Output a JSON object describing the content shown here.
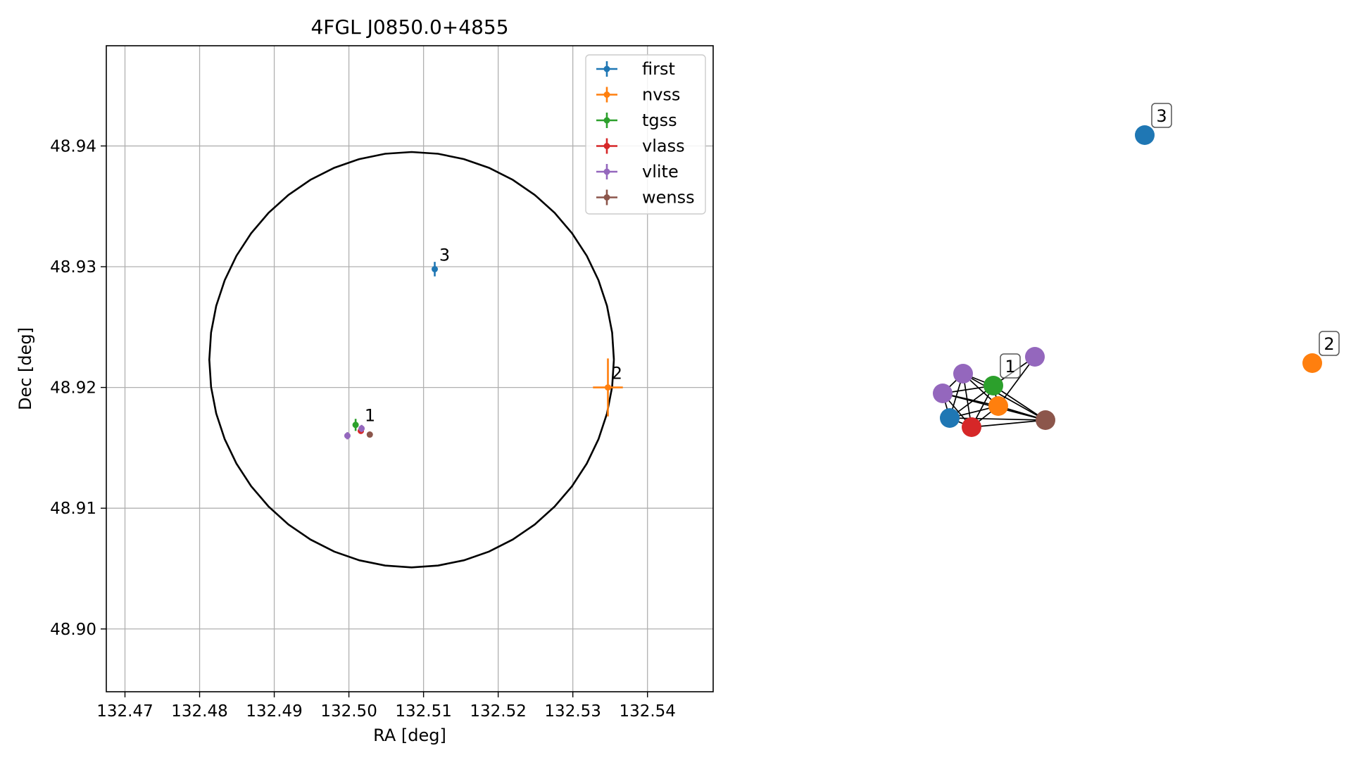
{
  "chart_data": [
    {
      "type": "scatter",
      "title": "4FGL J0850.0+4855",
      "xlabel": "RA [deg]",
      "ylabel": "Dec [deg]",
      "xlim": [
        132.4675,
        132.5488
      ],
      "ylim": [
        48.8948,
        48.9483
      ],
      "xticks": [
        132.47,
        132.48,
        132.49,
        132.5,
        132.51,
        132.52,
        132.53,
        132.54
      ],
      "xtick_labels": [
        "132.47",
        "132.48",
        "132.49",
        "132.50",
        "132.51",
        "132.52",
        "132.53",
        "132.54"
      ],
      "yticks": [
        48.9,
        48.91,
        48.92,
        48.93,
        48.94
      ],
      "ytick_labels": [
        "48.90",
        "48.91",
        "48.92",
        "48.93",
        "48.94"
      ],
      "grid": true,
      "legend_position": "top-right",
      "ellipse": {
        "center": [
          132.5084,
          48.9223
        ],
        "ra_semi_axis": 0.0271,
        "dec_semi_axis": 0.0172
      },
      "series": [
        {
          "name": "first",
          "color": "#1f77b4",
          "points": [
            {
              "x": 132.5115,
              "y": 48.9298,
              "xerr": 0.0003,
              "yerr": 0.0006
            }
          ]
        },
        {
          "name": "nvss",
          "color": "#ff7f0e",
          "points": [
            {
              "x": 132.5347,
              "y": 48.92,
              "xerr": 0.002,
              "yerr": 0.0024
            }
          ]
        },
        {
          "name": "tgss",
          "color": "#2ca02c",
          "points": [
            {
              "x": 132.5009,
              "y": 48.9169,
              "xerr": 0.0004,
              "yerr": 0.0005
            }
          ]
        },
        {
          "name": "vlass",
          "color": "#d62728",
          "points": [
            {
              "x": 132.5016,
              "y": 48.9164,
              "xerr": 0.0001,
              "yerr": 0.0001
            }
          ]
        },
        {
          "name": "vlite",
          "color": "#9467bd",
          "points": [
            {
              "x": 132.4998,
              "y": 48.916,
              "xerr": 0.0002,
              "yerr": 0.0003
            },
            {
              "x": 132.5017,
              "y": 48.9166,
              "xerr": 0.0003,
              "yerr": 0.0003
            }
          ]
        },
        {
          "name": "wenss",
          "color": "#8c564b",
          "points": [
            {
              "x": 132.5028,
              "y": 48.9161,
              "xerr": 0.0003,
              "yerr": 0.0002
            }
          ]
        }
      ],
      "annotations": [
        {
          "text": "1",
          "x": 132.5021,
          "y": 48.9172
        },
        {
          "text": "2",
          "x": 132.5352,
          "y": 48.9207
        },
        {
          "text": "3",
          "x": 132.5121,
          "y": 48.9305
        }
      ]
    },
    {
      "type": "network",
      "nodes": [
        {
          "id": "n1",
          "color": "#1f77b4"
        },
        {
          "id": "n2",
          "color": "#d62728"
        },
        {
          "id": "n3",
          "color": "#ff7f0e"
        },
        {
          "id": "n4",
          "color": "#2ca02c",
          "label": "1"
        },
        {
          "id": "n5",
          "color": "#9467bd"
        },
        {
          "id": "n6",
          "color": "#9467bd"
        },
        {
          "id": "n7",
          "color": "#9467bd"
        },
        {
          "id": "n8",
          "color": "#8c564b"
        },
        {
          "id": "n9",
          "color": "#1f77b4",
          "label": "3"
        },
        {
          "id": "n10",
          "color": "#ff7f0e",
          "label": "2"
        }
      ],
      "edges": [
        [
          "n1",
          "n2"
        ],
        [
          "n1",
          "n3"
        ],
        [
          "n1",
          "n4"
        ],
        [
          "n1",
          "n5"
        ],
        [
          "n1",
          "n6"
        ],
        [
          "n1",
          "n8"
        ],
        [
          "n2",
          "n3"
        ],
        [
          "n2",
          "n4"
        ],
        [
          "n2",
          "n5"
        ],
        [
          "n2",
          "n6"
        ],
        [
          "n2",
          "n8"
        ],
        [
          "n3",
          "n4"
        ],
        [
          "n3",
          "n5"
        ],
        [
          "n3",
          "n6"
        ],
        [
          "n3",
          "n7"
        ],
        [
          "n3",
          "n8"
        ],
        [
          "n4",
          "n5"
        ],
        [
          "n4",
          "n6"
        ],
        [
          "n4",
          "n7"
        ],
        [
          "n4",
          "n8"
        ],
        [
          "n5",
          "n6"
        ],
        [
          "n5",
          "n8"
        ],
        [
          "n6",
          "n8"
        ]
      ]
    }
  ]
}
